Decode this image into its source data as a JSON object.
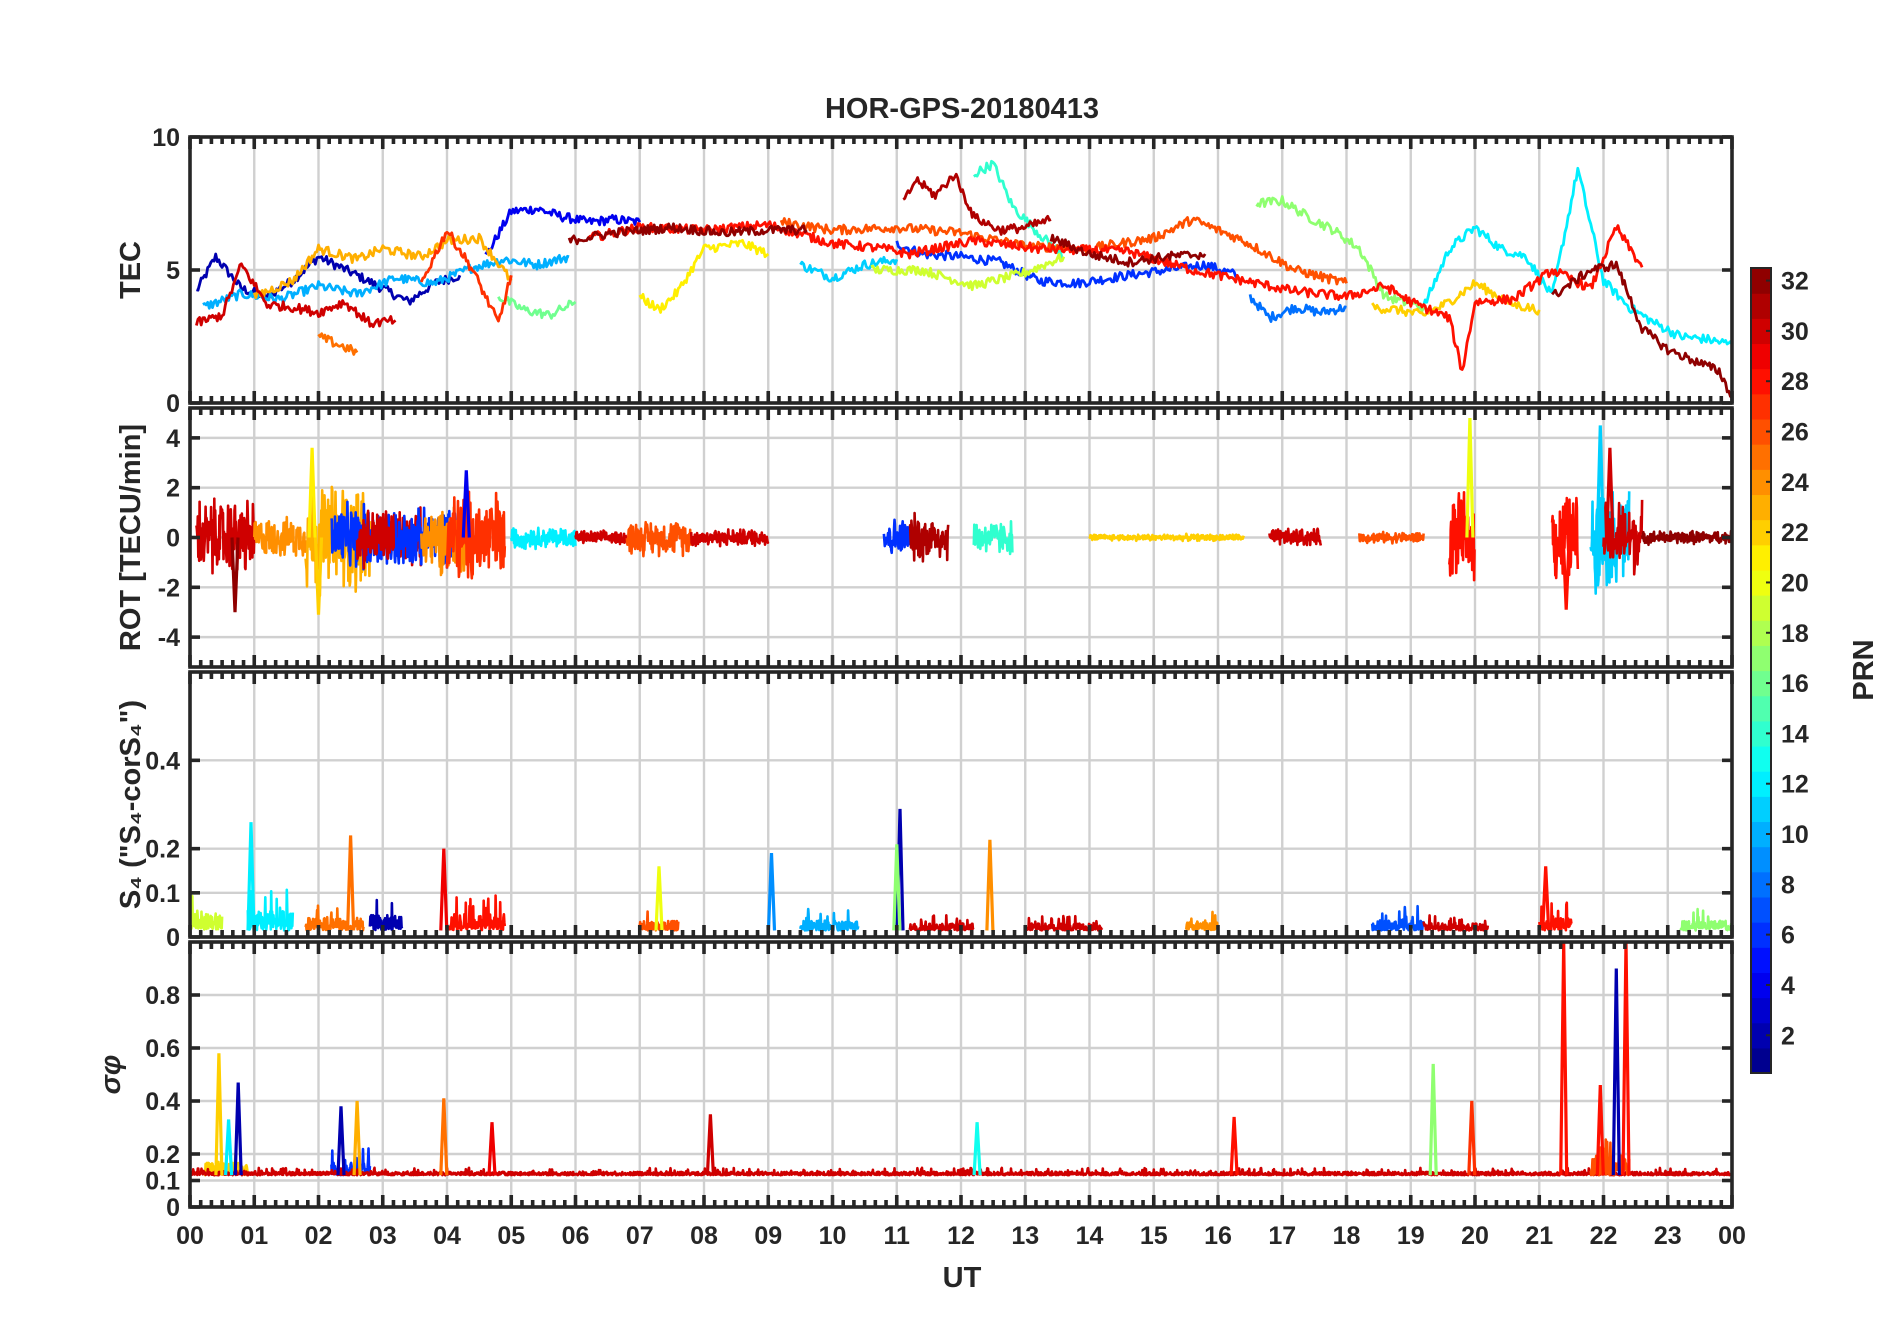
{
  "chart_data": {
    "type": "line",
    "title": "HOR-GPS-20180413",
    "xlabel": "UT",
    "x_ticks": [
      "00",
      "01",
      "02",
      "03",
      "04",
      "05",
      "06",
      "07",
      "08",
      "09",
      "10",
      "11",
      "12",
      "13",
      "14",
      "15",
      "16",
      "17",
      "18",
      "19",
      "20",
      "21",
      "22",
      "23",
      "00"
    ],
    "xlim": [
      0,
      24
    ],
    "grid": true,
    "colormap": "jet",
    "colorbar": {
      "label": "PRN",
      "range": [
        1,
        32
      ],
      "ticks": [
        "2",
        "4",
        "6",
        "8",
        "10",
        "12",
        "14",
        "16",
        "18",
        "20",
        "22",
        "24",
        "26",
        "28",
        "30",
        "32"
      ]
    },
    "panels": [
      {
        "ylabel": "TEC",
        "ylim": [
          0,
          10
        ],
        "yticks": [
          "0",
          "5",
          "10"
        ],
        "series": [
          {
            "prn": 2,
            "x": [
              0.1,
              0.4,
              0.8,
              1.2,
              1.6,
              2.0,
              2.6,
              3.0,
              3.4,
              3.8,
              4.2
            ],
            "y": [
              4.2,
              5.5,
              4.3,
              4.0,
              4.6,
              5.5,
              4.8,
              4.3,
              3.8,
              4.5,
              4.8
            ]
          },
          {
            "prn": 4,
            "x": [
              4.6,
              5.0,
              5.4,
              5.8,
              6.2,
              6.6,
              7.0
            ],
            "y": [
              5.5,
              7.2,
              7.3,
              7.0,
              6.8,
              6.9,
              6.8
            ]
          },
          {
            "prn": 6,
            "x": [
              11.0,
              11.4,
              12.0,
              12.6,
              13.2,
              13.8,
              14.6,
              15.2,
              15.8,
              16.3
            ],
            "y": [
              6.0,
              5.6,
              5.5,
              5.3,
              4.6,
              4.5,
              4.8,
              5.0,
              5.2,
              4.8
            ]
          },
          {
            "prn": 8,
            "x": [
              16.5,
              16.8,
              17.2,
              17.6,
              18.0
            ],
            "y": [
              4.0,
              3.2,
              3.6,
              3.4,
              3.6
            ]
          },
          {
            "prn": 10,
            "x": [
              0.2,
              0.8,
              1.4,
              2.0,
              2.6,
              3.2,
              3.8,
              4.4,
              4.9,
              5.4,
              5.9
            ],
            "y": [
              3.6,
              4.1,
              3.9,
              4.4,
              4.1,
              4.7,
              4.5,
              5.1,
              5.4,
              5.2,
              5.5
            ]
          },
          {
            "prn": 11,
            "x": [
              9.5,
              10.0,
              10.5,
              11.0
            ],
            "y": [
              5.2,
              4.7,
              5.2,
              5.4
            ]
          },
          {
            "prn": 12,
            "x": [
              19.2,
              19.6,
              20.0,
              20.4,
              20.8,
              21.2,
              21.6,
              22.0,
              22.4,
              22.8,
              23.2,
              23.6,
              24.0
            ],
            "y": [
              3.6,
              5.8,
              6.6,
              5.8,
              5.5,
              4.0,
              8.8,
              4.6,
              3.6,
              3.0,
              2.5,
              2.4,
              2.2
            ]
          },
          {
            "prn": 14,
            "x": [
              12.2,
              12.5,
              12.8,
              13.2,
              13.6
            ],
            "y": [
              8.6,
              9.0,
              7.4,
              6.4,
              5.5
            ]
          },
          {
            "prn": 16,
            "x": [
              4.8,
              5.2,
              5.6,
              6.0
            ],
            "y": [
              4.0,
              3.5,
              3.3,
              3.8
            ]
          },
          {
            "prn": 17,
            "x": [
              16.6,
              17.0,
              17.4,
              17.8,
              18.2,
              18.6,
              19.2
            ],
            "y": [
              7.5,
              7.6,
              7.0,
              6.5,
              5.8,
              4.0,
              3.6
            ]
          },
          {
            "prn": 19,
            "x": [
              10.6,
              11.4,
              12.2,
              13.0,
              13.6
            ],
            "y": [
              5.0,
              5.0,
              4.4,
              4.9,
              5.5
            ]
          },
          {
            "prn": 21,
            "x": [
              7.0,
              7.3,
              7.6,
              8.0,
              8.6,
              9.0
            ],
            "y": [
              4.0,
              3.5,
              4.2,
              5.8,
              6.0,
              5.6
            ]
          },
          {
            "prn": 22,
            "x": [
              18.4,
              18.8,
              19.2,
              19.6,
              20.0,
              20.6,
              21.0
            ],
            "y": [
              3.6,
              3.5,
              3.3,
              3.8,
              4.5,
              3.7,
              3.5
            ]
          },
          {
            "prn": 23,
            "x": [
              1.0,
              1.6,
              2.0,
              2.6,
              3.0,
              3.6,
              4.0,
              4.5,
              5.0
            ],
            "y": [
              4.0,
              4.6,
              5.8,
              5.4,
              5.8,
              5.5,
              6.1,
              6.2,
              4.6
            ]
          },
          {
            "prn": 25,
            "x": [
              2.0,
              2.4,
              2.6
            ],
            "y": [
              2.5,
              2.1,
              1.9
            ]
          },
          {
            "prn": 26,
            "x": [
              9.2,
              10.0,
              11.0,
              12.0,
              13.0,
              14.0,
              15.0,
              15.6,
              16.4,
              17.2,
              18.0
            ],
            "y": [
              6.8,
              6.5,
              6.6,
              6.4,
              5.9,
              5.8,
              6.2,
              6.9,
              6.1,
              5.0,
              4.5
            ]
          },
          {
            "prn": 27,
            "x": [
              3.6,
              4.0,
              4.4,
              4.8,
              5.0
            ],
            "y": [
              4.5,
              6.5,
              5.0,
              3.0,
              4.8
            ]
          },
          {
            "prn": 28,
            "x": [
              6.2,
              7.0,
              8.0,
              9.0,
              10.0,
              10.8,
              11.2,
              12.2,
              13.2,
              14.6,
              15.6,
              16.4,
              17.2,
              18.0,
              18.6,
              19.0,
              19.6,
              19.8,
              20.0,
              20.6,
              21.2,
              21.8,
              22.2,
              22.6
            ],
            "y": [
              6.2,
              6.6,
              6.5,
              6.7,
              6.0,
              5.8,
              5.6,
              6.1,
              5.8,
              5.7,
              5.0,
              4.6,
              4.2,
              4.0,
              4.4,
              3.8,
              3.2,
              1.2,
              3.8,
              3.9,
              5.0,
              4.3,
              6.6,
              5.1
            ]
          },
          {
            "prn": 30,
            "x": [
              0.1,
              0.5,
              0.8,
              1.2,
              1.6,
              2.0,
              2.4,
              2.8,
              3.2
            ],
            "y": [
              3.0,
              3.3,
              5.2,
              3.7,
              3.6,
              3.4,
              3.8,
              3.0,
              3.1
            ]
          },
          {
            "prn": 31,
            "x": [
              11.1,
              11.3,
              11.6,
              11.9,
              12.2,
              12.6,
              13.0,
              13.4
            ],
            "y": [
              7.5,
              8.4,
              7.8,
              8.6,
              7.0,
              6.5,
              6.6,
              6.9
            ]
          },
          {
            "prn": 32,
            "x": [
              5.9,
              6.6,
              7.5,
              8.3,
              9.0,
              9.6
            ],
            "y": [
              6.1,
              6.4,
              6.6,
              6.4,
              6.5,
              6.5
            ]
          },
          {
            "prn": 32,
            "x": [
              13.4,
              14.0,
              14.6,
              15.2,
              15.8
            ],
            "y": [
              6.2,
              5.6,
              5.3,
              5.5,
              5.6
            ]
          },
          {
            "prn": 32,
            "x": [
              21.2,
              21.8,
              22.2,
              22.6,
              23.0,
              23.4,
              23.8,
              24.0
            ],
            "y": [
              4.0,
              5.0,
              5.2,
              2.8,
              2.0,
              1.6,
              1.2,
              0.2
            ]
          }
        ]
      },
      {
        "ylabel": "ROT [TECU/min]",
        "ylim": [
          -5.2,
          5.2
        ],
        "yticks": [
          "-4",
          "-2",
          "0",
          "2",
          "4"
        ],
        "bursts": [
          {
            "prn": 30,
            "x0": 0.1,
            "x1": 1.0,
            "amp": 1.8
          },
          {
            "prn": 24,
            "x0": 1.0,
            "x1": 1.8,
            "amp": 0.9
          },
          {
            "prn": 23,
            "x0": 1.8,
            "x1": 2.8,
            "amp": 2.6
          },
          {
            "prn": 6,
            "x0": 2.2,
            "x1": 3.2,
            "amp": 1.5
          },
          {
            "prn": 30,
            "x0": 2.6,
            "x1": 3.6,
            "amp": 1.4
          },
          {
            "prn": 6,
            "x0": 3.2,
            "x1": 4.2,
            "amp": 1.3
          },
          {
            "prn": 24,
            "x0": 3.6,
            "x1": 4.4,
            "amp": 1.6
          },
          {
            "prn": 27,
            "x0": 4.0,
            "x1": 4.9,
            "amp": 2.2
          },
          {
            "prn": 12,
            "x0": 5.0,
            "x1": 6.0,
            "amp": 0.5
          },
          {
            "prn": 30,
            "x0": 6.0,
            "x1": 6.8,
            "amp": 0.3
          },
          {
            "prn": 26,
            "x0": 6.8,
            "x1": 7.8,
            "amp": 0.8
          },
          {
            "prn": 30,
            "x0": 7.8,
            "x1": 9.0,
            "amp": 0.4
          },
          {
            "prn": 6,
            "x0": 10.8,
            "x1": 11.2,
            "amp": 0.9
          },
          {
            "prn": 31,
            "x0": 11.2,
            "x1": 11.8,
            "amp": 1.1
          },
          {
            "prn": 14,
            "x0": 12.2,
            "x1": 12.8,
            "amp": 0.8
          },
          {
            "prn": 22,
            "x0": 14.0,
            "x1": 16.4,
            "amp": 0.15
          },
          {
            "prn": 30,
            "x0": 16.8,
            "x1": 17.6,
            "amp": 0.4
          },
          {
            "prn": 26,
            "x0": 18.2,
            "x1": 19.2,
            "amp": 0.25
          },
          {
            "prn": 28,
            "x0": 19.6,
            "x1": 20.0,
            "amp": 1.9
          },
          {
            "prn": 28,
            "x0": 21.2,
            "x1": 21.6,
            "amp": 2.1
          },
          {
            "prn": 11,
            "x0": 21.8,
            "x1": 22.4,
            "amp": 2.3
          },
          {
            "prn": 30,
            "x0": 22.0,
            "x1": 22.6,
            "amp": 1.7
          },
          {
            "prn": 32,
            "x0": 22.6,
            "x1": 24.0,
            "amp": 0.3
          }
        ],
        "spikes": [
          {
            "prn": 20,
            "x": 19.92,
            "y": 4.8
          },
          {
            "prn": 11,
            "x": 21.95,
            "y": 4.5
          },
          {
            "prn": 21,
            "x": 1.9,
            "y": 3.6
          },
          {
            "prn": 22,
            "x": 2.0,
            "y": -3.1
          },
          {
            "prn": 28,
            "x": 21.42,
            "y": -2.9
          },
          {
            "prn": 32,
            "x": 0.7,
            "y": -3.0
          },
          {
            "prn": 4,
            "x": 4.3,
            "y": 2.7
          },
          {
            "prn": 30,
            "x": 22.1,
            "y": 3.6
          }
        ]
      },
      {
        "ylabel": "S₄ (\"S₄-corS₄\")",
        "ylim": [
          0,
          0.6
        ],
        "yticks": [
          "0",
          "0.1",
          "0.2",
          "0.4"
        ],
        "bursts": [
          {
            "prn": 19,
            "x0": 0.0,
            "x1": 0.5,
            "amp": 0.12
          },
          {
            "prn": 12,
            "x0": 0.9,
            "x1": 1.6,
            "amp": 0.14
          },
          {
            "prn": 25,
            "x0": 1.8,
            "x1": 2.7,
            "amp": 0.09
          },
          {
            "prn": 2,
            "x0": 2.8,
            "x1": 3.3,
            "amp": 0.11
          },
          {
            "prn": 28,
            "x0": 4.0,
            "x1": 4.9,
            "amp": 0.12
          },
          {
            "prn": 26,
            "x0": 7.0,
            "x1": 7.6,
            "amp": 0.07
          },
          {
            "prn": 10,
            "x0": 9.5,
            "x1": 10.4,
            "amp": 0.07
          },
          {
            "prn": 30,
            "x0": 11.2,
            "x1": 12.2,
            "amp": 0.05
          },
          {
            "prn": 30,
            "x0": 13.0,
            "x1": 14.2,
            "amp": 0.05
          },
          {
            "prn": 24,
            "x0": 15.5,
            "x1": 16.0,
            "amp": 0.06
          },
          {
            "prn": 7,
            "x0": 18.4,
            "x1": 19.2,
            "amp": 0.08
          },
          {
            "prn": 30,
            "x0": 19.2,
            "x1": 20.2,
            "amp": 0.05
          },
          {
            "prn": 28,
            "x0": 21.0,
            "x1": 21.5,
            "amp": 0.09
          },
          {
            "prn": 17,
            "x0": 23.2,
            "x1": 24.0,
            "amp": 0.07
          }
        ],
        "spikes": [
          {
            "prn": 2,
            "x": 11.05,
            "y": 0.29
          },
          {
            "prn": 17,
            "x": 11.0,
            "y": 0.21
          },
          {
            "prn": 12,
            "x": 0.95,
            "y": 0.26
          },
          {
            "prn": 25,
            "x": 2.5,
            "y": 0.23
          },
          {
            "prn": 24,
            "x": 12.45,
            "y": 0.22
          },
          {
            "prn": 9,
            "x": 9.05,
            "y": 0.19
          },
          {
            "prn": 29,
            "x": 3.95,
            "y": 0.2
          },
          {
            "prn": 20,
            "x": 7.3,
            "y": 0.16
          },
          {
            "prn": 28,
            "x": 21.1,
            "y": 0.16
          }
        ]
      },
      {
        "ylabel": "σφ",
        "ylim": [
          0,
          1
        ],
        "yticks": [
          "0",
          "0.1",
          "0.2",
          "0.4",
          "0.6",
          "0.8"
        ],
        "baseline": 0.12,
        "bursts": [
          {
            "prn": 22,
            "x0": 0.2,
            "x1": 0.9,
            "amp": 0.15
          },
          {
            "prn": 6,
            "x0": 2.2,
            "x1": 2.8,
            "amp": 0.15
          },
          {
            "prn": 30,
            "x0": 0.0,
            "x1": 24.0,
            "amp": 0.04
          },
          {
            "prn": 26,
            "x0": 21.8,
            "x1": 22.4,
            "amp": 0.2
          }
        ],
        "spikes": [
          {
            "prn": 28,
            "x": 21.38,
            "y": 1.0
          },
          {
            "prn": 28,
            "x": 22.35,
            "y": 1.0
          },
          {
            "prn": 2,
            "x": 22.2,
            "y": 0.9
          },
          {
            "prn": 22,
            "x": 0.45,
            "y": 0.58
          },
          {
            "prn": 17,
            "x": 19.35,
            "y": 0.54
          },
          {
            "prn": 2,
            "x": 0.75,
            "y": 0.47
          },
          {
            "prn": 28,
            "x": 21.95,
            "y": 0.46
          },
          {
            "prn": 25,
            "x": 3.95,
            "y": 0.41
          },
          {
            "prn": 23,
            "x": 2.6,
            "y": 0.4
          },
          {
            "prn": 2,
            "x": 2.35,
            "y": 0.38
          },
          {
            "prn": 27,
            "x": 19.95,
            "y": 0.4
          },
          {
            "prn": 28,
            "x": 16.25,
            "y": 0.34
          },
          {
            "prn": 13,
            "x": 12.25,
            "y": 0.32
          },
          {
            "prn": 29,
            "x": 4.7,
            "y": 0.32
          },
          {
            "prn": 30,
            "x": 8.1,
            "y": 0.35
          },
          {
            "prn": 12,
            "x": 0.6,
            "y": 0.33
          }
        ]
      }
    ]
  }
}
